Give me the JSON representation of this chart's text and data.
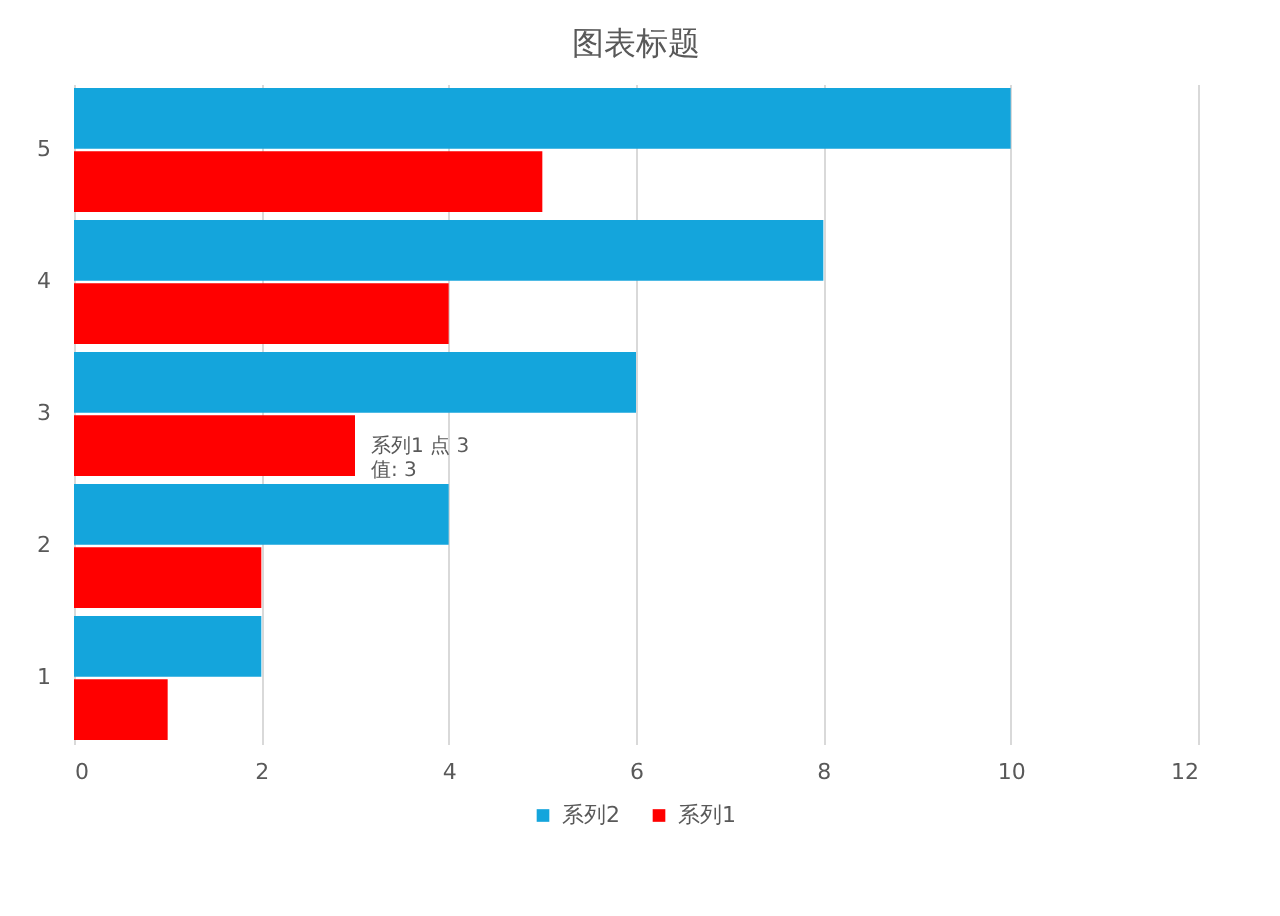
{
  "chart_data": {
    "type": "bar",
    "orientation": "horizontal",
    "title": "图表标题",
    "categories": [
      "5",
      "4",
      "3",
      "2",
      "1"
    ],
    "series": [
      {
        "name": "系列2",
        "color": "#14a5dc",
        "values": [
          10,
          8,
          6,
          4,
          2
        ]
      },
      {
        "name": "系列1",
        "color": "#ff0000",
        "values": [
          5,
          4,
          3,
          2,
          1
        ]
      }
    ],
    "xlim": [
      0,
      12
    ],
    "xticks": [
      0,
      2,
      4,
      6,
      8,
      10,
      12
    ],
    "grid": "x",
    "legend": "bottom",
    "annotations": [
      {
        "text": "系列1 点 3\n值: 3",
        "x": 3,
        "y": "3"
      }
    ]
  }
}
